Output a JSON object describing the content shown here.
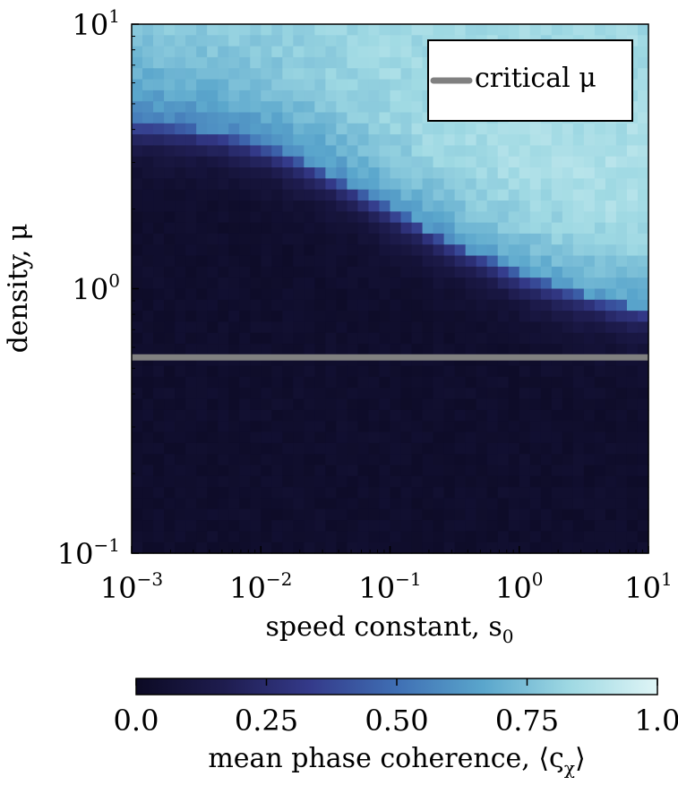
{
  "chart_data": {
    "type": "heatmap",
    "xlabel": "speed constant, s",
    "xlabel_sub": "0",
    "ylabel": "density, μ",
    "x_scale": "log",
    "y_scale": "log",
    "xlim": [
      0.001,
      10
    ],
    "ylim": [
      0.1,
      10
    ],
    "x_ticks": [
      {
        "base": "10",
        "exp": "−3"
      },
      {
        "base": "10",
        "exp": "−2"
      },
      {
        "base": "10",
        "exp": "−1"
      },
      {
        "base": "10",
        "exp": "0"
      },
      {
        "base": "10",
        "exp": "1"
      }
    ],
    "x_tick_values": [
      0.001,
      0.01,
      0.1,
      1,
      10
    ],
    "y_ticks": [
      {
        "base": "10",
        "exp": "−1"
      },
      {
        "base": "10",
        "exp": "0"
      },
      {
        "base": "10",
        "exp": "1"
      }
    ],
    "y_tick_values": [
      0.1,
      1,
      10
    ],
    "grid_cols": 48,
    "grid_rows": 48,
    "critical_line": {
      "name": "critical μ",
      "y": 0.55,
      "color": "#808080"
    },
    "legend": {
      "placement": "top-right",
      "entry": "critical μ"
    },
    "colorbar": {
      "label": "mean phase coherence, ⟨ς",
      "label_sub": "χ",
      "label_end": "⟩",
      "ticks": [
        "0.0",
        "0.25",
        "0.50",
        "0.75",
        "1.0"
      ],
      "tick_values": [
        0,
        0.25,
        0.5,
        0.75,
        1.0
      ],
      "range": [
        0,
        1
      ],
      "colors": [
        "#0c0a24",
        "#1e1c4e",
        "#343a8a",
        "#3f6fb4",
        "#5aa6cc",
        "#9fd9e3",
        "#dff5f6"
      ]
    }
  }
}
